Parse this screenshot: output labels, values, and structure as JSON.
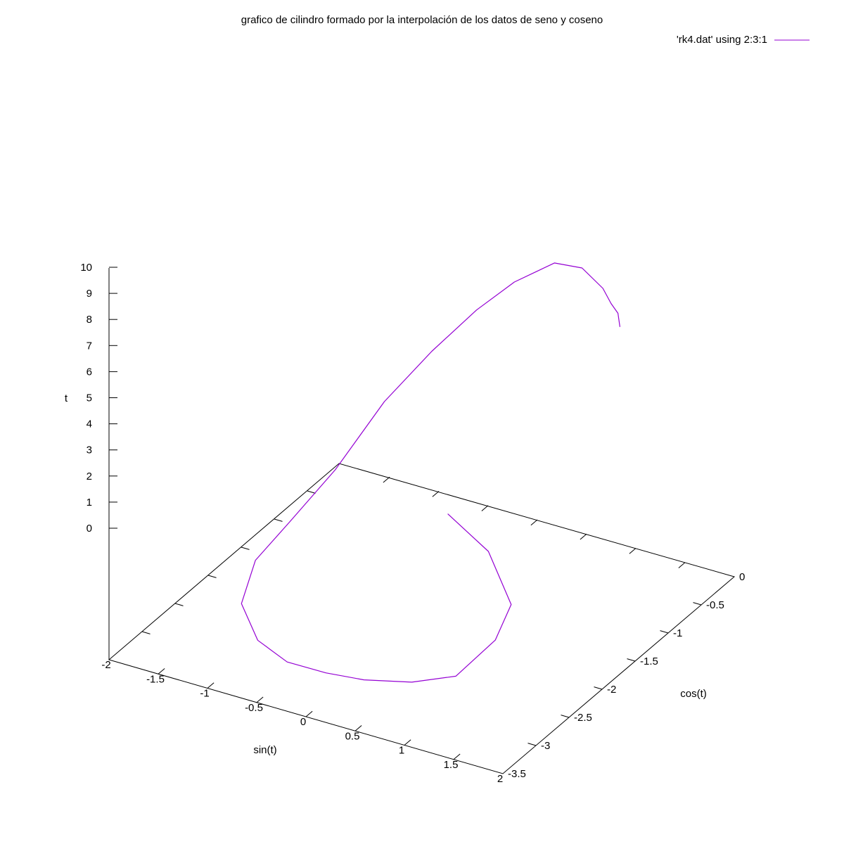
{
  "chart_data": {
    "type": "line",
    "title": "grafico de cilindro formado por la interpolación de los datos de seno y coseno",
    "xlabel": "sin(t)",
    "ylabel": "cos(t)",
    "zlabel": "t",
    "xlim": [
      -2,
      2
    ],
    "ylim": [
      -3.5,
      0
    ],
    "zlim": [
      0,
      10
    ],
    "x_ticks": [
      "-2",
      "-1.5",
      "-1",
      "-0.5",
      "0",
      "0.5",
      "1",
      "1.5",
      "2"
    ],
    "y_ticks": [
      "-3.5",
      "-3",
      "-2.5",
      "-2",
      "-1.5",
      "-1",
      "-0.5",
      "0"
    ],
    "z_ticks": [
      "0",
      "1",
      "2",
      "3",
      "4",
      "5",
      "6",
      "7",
      "8",
      "9",
      "10"
    ],
    "legend_position": "top-right",
    "grid": false,
    "series": [
      {
        "name": "'rk4.dat' using 2:3:1",
        "color": "#9400d3",
        "t": [
          5.3,
          4.6,
          3.8,
          3.3,
          2.0,
          1.4,
          0.9,
          0.6,
          0.3,
          0.2,
          0.5,
          1.1,
          1.8,
          3.0,
          5.0,
          6.5,
          8.0,
          9.0,
          9.8,
          10.0,
          10.0,
          9.8,
          9.5,
          9.0
        ],
        "x": [
          0.5,
          0.98,
          1.44,
          1.52,
          1.24,
          0.82,
          0.32,
          -0.1,
          -0.56,
          -1.0,
          -1.38,
          -1.52,
          -1.44,
          -1.28,
          -1.05,
          -0.79,
          -0.47,
          -0.2,
          0.12,
          0.42,
          0.76,
          0.91,
          0.98,
          1.0
        ],
        "y": [
          -2.1,
          -2.2,
          -2.54,
          -2.9,
          -3.08,
          -3.12,
          -3.1,
          -3.05,
          -2.95,
          -2.74,
          -2.42,
          -2.0,
          -1.6,
          -1.15,
          -0.75,
          -0.42,
          -0.22,
          -0.05,
          0.08,
          0.05,
          -0.14,
          -0.24,
          -0.24,
          -0.24
        ]
      }
    ]
  }
}
